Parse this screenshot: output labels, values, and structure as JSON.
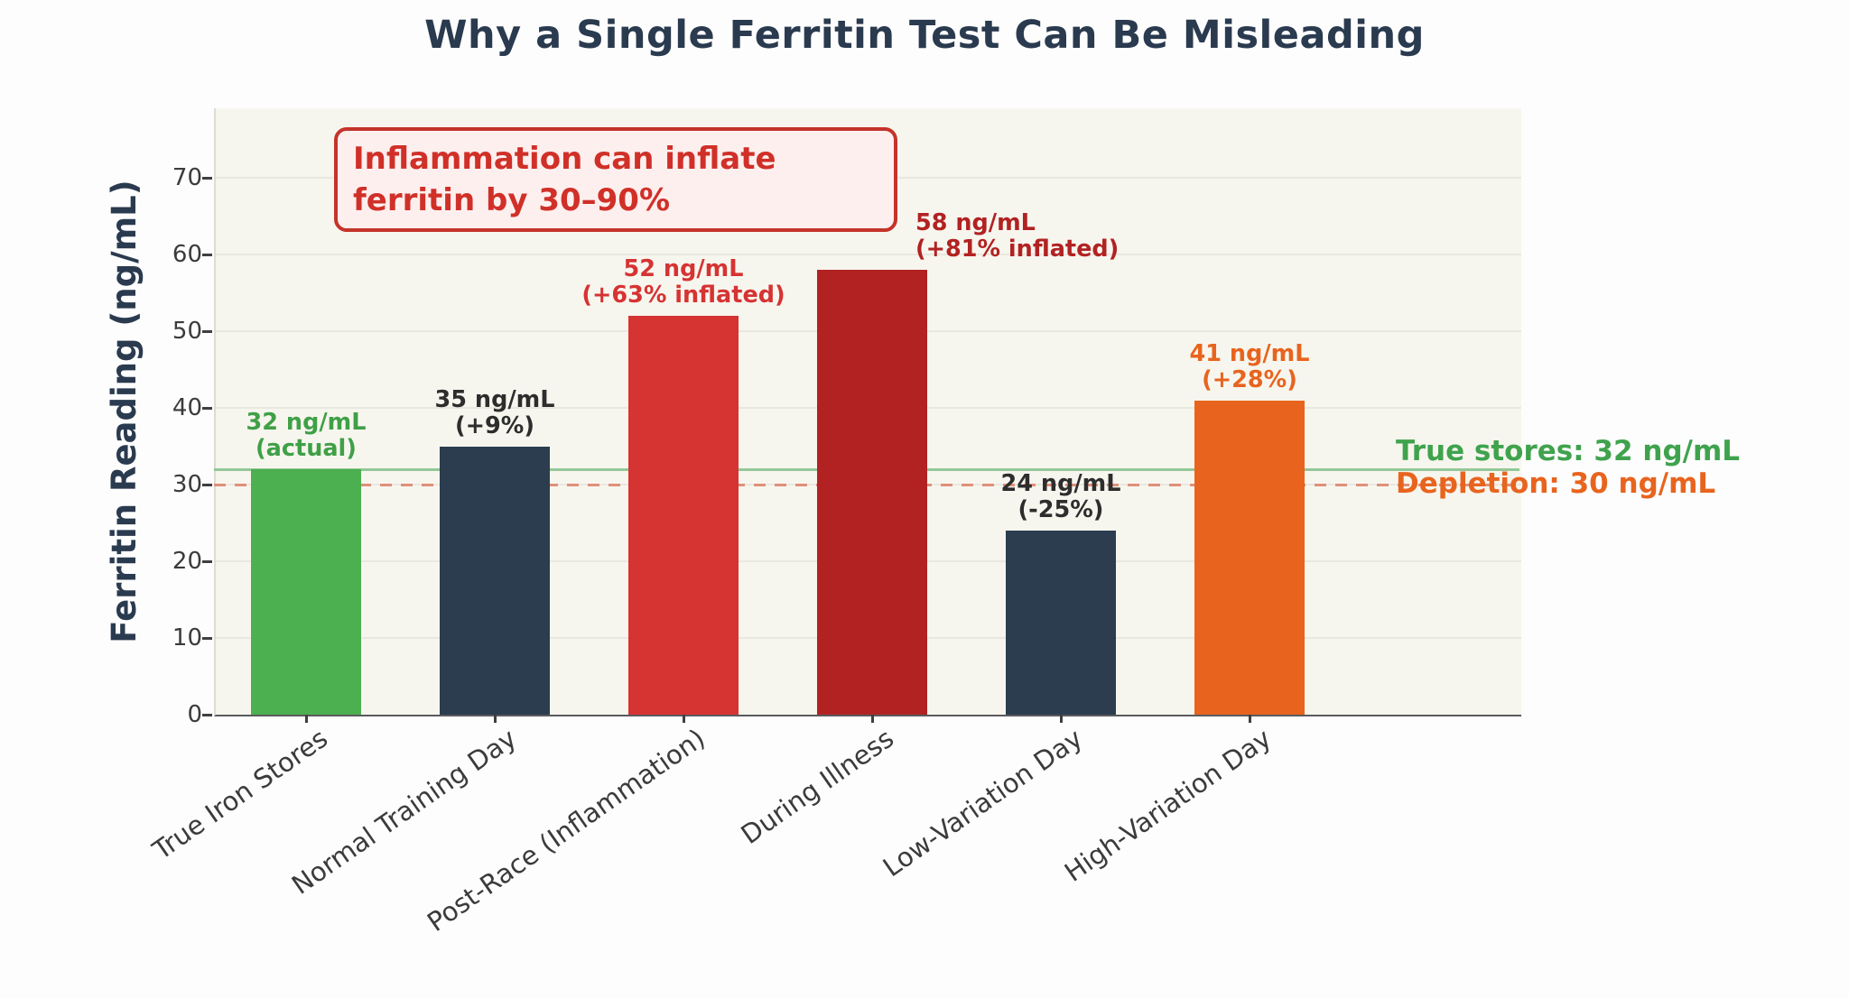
{
  "title": "Why a Single Ferritin Test Can Be Misleading",
  "y_axis": {
    "label": "Ferritin Reading (ng/mL)",
    "ticks": [
      0,
      10,
      20,
      30,
      40,
      50,
      60,
      70
    ]
  },
  "annotation_box": {
    "line1": "Inflammation can inflate",
    "line2": "ferritin by 30–90%",
    "text_color": "#d03028",
    "border_color": "#c4342b",
    "bg_color": "#fdefee"
  },
  "reference_lines": [
    {
      "name": "true-stores",
      "value": 32,
      "label": "True stores: 32 ng/mL",
      "label_color": "#3fa34d",
      "line_color": "#93c897",
      "style": "solid"
    },
    {
      "name": "depletion",
      "value": 30,
      "label": "Depletion: 30 ng/mL",
      "label_color": "#e8641e",
      "line_color": "#e0907a",
      "style": "dashed"
    }
  ],
  "chart_data": {
    "type": "bar",
    "title": "Why a Single Ferritin Test Can Be Misleading",
    "ylabel": "Ferritin Reading (ng/mL)",
    "ylim": [
      0,
      78
    ],
    "grid": true,
    "legend": "none",
    "categories": [
      "True Iron Stores",
      "Normal Training Day",
      "Post-Race (Inflammation)",
      "During Illness",
      "Low-Variation Day",
      "High-Variation Day"
    ],
    "values": [
      32,
      35,
      52,
      58,
      24,
      41
    ],
    "bar_colors": [
      "#4caf50",
      "#2b3d4f",
      "#d63333",
      "#b22222",
      "#2b3d4f",
      "#e8641e"
    ],
    "bar_labels": [
      {
        "line1": "32 ng/mL",
        "line2": "(actual)",
        "color": "#3fa047",
        "align": "center"
      },
      {
        "line1": "35 ng/mL",
        "line2": "(+9%)",
        "color": "#2d2d2d",
        "align": "center"
      },
      {
        "line1": "52 ng/mL",
        "line2": "(+63% inflated)",
        "color": "#d63333",
        "align": "center"
      },
      {
        "line1": "58 ng/mL",
        "line2": "(+81% inflated)",
        "color": "#b22222",
        "align": "left"
      },
      {
        "line1": "24 ng/mL",
        "line2": "(-25%)",
        "color": "#2d2d2d",
        "align": "center"
      },
      {
        "line1": "41 ng/mL",
        "line2": "(+28%)",
        "color": "#e8641e",
        "align": "center"
      }
    ]
  }
}
